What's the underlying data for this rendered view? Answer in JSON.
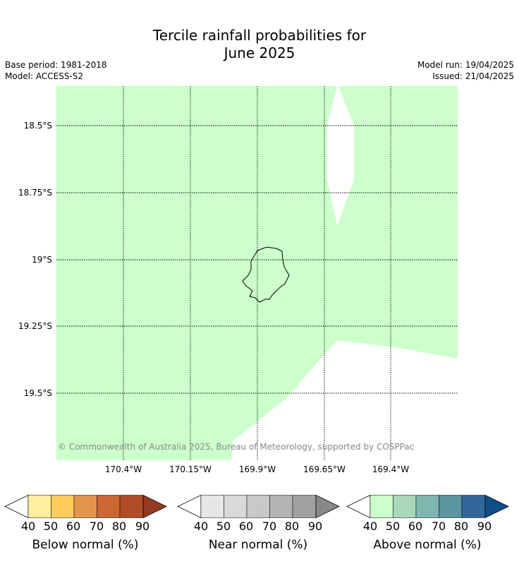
{
  "title_line1": "Tercile rainfall probabilities for",
  "title_line2": "June 2025",
  "meta": {
    "base_period": "Base period: 1981-2018",
    "model": "Model: ACCESS-S2",
    "model_run": "Model run: 19/04/2025",
    "issued": "Issued: 21/04/2025"
  },
  "map": {
    "lat_labels": [
      "18.5°S",
      "18.75°S",
      "19°S",
      "19.25°S",
      "19.5°S"
    ],
    "lon_labels": [
      "170.4°W",
      "170.15°W",
      "169.9°W",
      "169.65°W",
      "169.4°W"
    ],
    "fill_color": "#ccffcc",
    "fill_category": "Above normal 40-50%",
    "copyright": "© Commonwealth of Australia 2025, Bureau of Meteorology, supported by COSPPac"
  },
  "colorbars": [
    {
      "name": "Below normal (%)",
      "ticks": [
        "40",
        "50",
        "60",
        "70",
        "80",
        "90"
      ],
      "colors": [
        "#ffeda0",
        "#fecc5c",
        "#e3944a",
        "#cc6633",
        "#b04c28",
        "#963a22"
      ]
    },
    {
      "name": "Near normal (%)",
      "ticks": [
        "40",
        "50",
        "60",
        "70",
        "80",
        "90"
      ],
      "colors": [
        "#e6e6e6",
        "#d9d9d9",
        "#c8c8c8",
        "#b4b4b4",
        "#a0a0a0",
        "#888888"
      ]
    },
    {
      "name": "Above normal (%)",
      "ticks": [
        "40",
        "50",
        "60",
        "70",
        "80",
        "90"
      ],
      "colors": [
        "#ccffcc",
        "#a8d8b8",
        "#7fb6b0",
        "#5b96a0",
        "#336699",
        "#0f4f88"
      ]
    }
  ]
}
